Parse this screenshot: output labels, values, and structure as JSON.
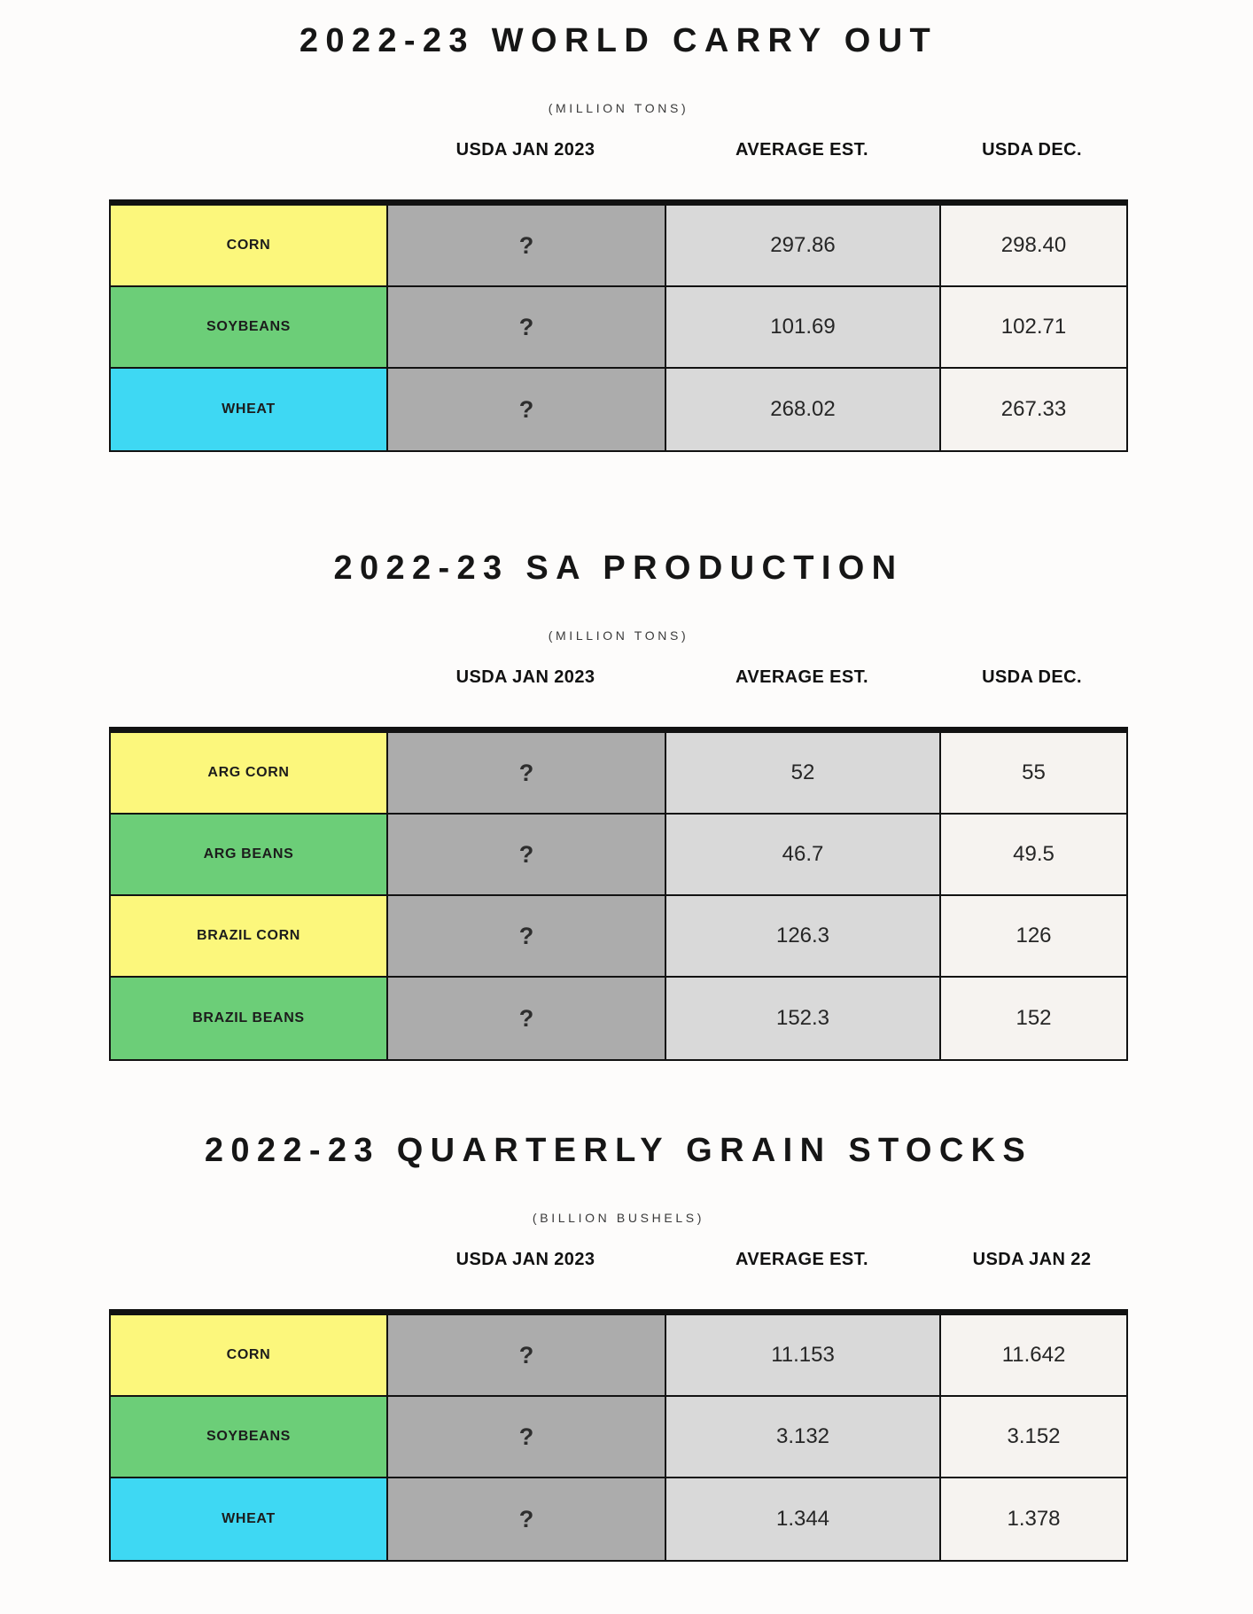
{
  "page_background": "#FDFCFB",
  "colors": {
    "yellow": "#FCF77C",
    "green": "#6CCE78",
    "cyan": "#3ED8F3",
    "col_usda_jan": "#ACACAC",
    "col_average": "#D9D9D9",
    "col_last": "#F6F3F0",
    "border": "#121212"
  },
  "tables": [
    {
      "title": "2022-23 WORLD CARRY OUT",
      "subtitle": "(MILLION TONS)",
      "headers": [
        "USDA JAN 2023",
        "AVERAGE EST.",
        "USDA DEC."
      ],
      "rows": [
        {
          "label": "CORN",
          "color_key": "yellow",
          "values": [
            "?",
            "297.86",
            "298.40"
          ]
        },
        {
          "label": "SOYBEANS",
          "color_key": "green",
          "values": [
            "?",
            "101.69",
            "102.71"
          ]
        },
        {
          "label": "WHEAT",
          "color_key": "cyan",
          "values": [
            "?",
            "268.02",
            "267.33"
          ]
        }
      ]
    },
    {
      "title": "2022-23 SA PRODUCTION",
      "subtitle": "(MILLION TONS)",
      "headers": [
        "USDA JAN 2023",
        "AVERAGE EST.",
        "USDA DEC."
      ],
      "rows": [
        {
          "label": "ARG CORN",
          "color_key": "yellow",
          "values": [
            "?",
            "52",
            "55"
          ]
        },
        {
          "label": "ARG BEANS",
          "color_key": "green",
          "values": [
            "?",
            "46.7",
            "49.5"
          ]
        },
        {
          "label": "BRAZIL CORN",
          "color_key": "yellow",
          "values": [
            "?",
            "126.3",
            "126"
          ]
        },
        {
          "label": "BRAZIL BEANS",
          "color_key": "green",
          "values": [
            "?",
            "152.3",
            "152"
          ]
        }
      ]
    },
    {
      "title": "2022-23 QUARTERLY GRAIN STOCKS",
      "subtitle": "(BILLION BUSHELS)",
      "headers": [
        "USDA JAN 2023",
        "AVERAGE EST.",
        "USDA JAN 22"
      ],
      "rows": [
        {
          "label": "CORN",
          "color_key": "yellow",
          "values": [
            "?",
            "11.153",
            "11.642"
          ]
        },
        {
          "label": "SOYBEANS",
          "color_key": "green",
          "values": [
            "?",
            "3.132",
            "3.152"
          ]
        },
        {
          "label": "WHEAT",
          "color_key": "cyan",
          "values": [
            "?",
            "1.344",
            "1.378"
          ]
        }
      ]
    }
  ]
}
